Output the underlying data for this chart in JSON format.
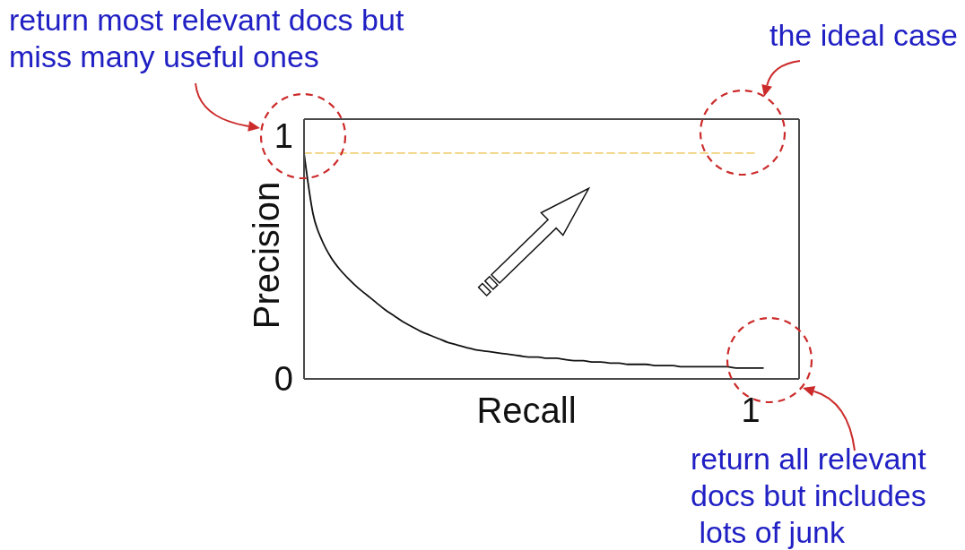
{
  "chart_data": {
    "type": "line",
    "xlabel": "Recall",
    "ylabel": "Precision",
    "categories": [
      null,
      null,
      null,
      null,
      null,
      null,
      null,
      null,
      null,
      null,
      null,
      null,
      null,
      null,
      null,
      null,
      null,
      null,
      null,
      null,
      null,
      null,
      null,
      null,
      null,
      null,
      null,
      null,
      null,
      null,
      null,
      null,
      null,
      null,
      null,
      null,
      null,
      null,
      null,
      null,
      null,
      null,
      null,
      null,
      null,
      null,
      null,
      null,
      null,
      null,
      null,
      null,
      null,
      null,
      null,
      null
    ],
    "ylim": [
      0,
      1.07
    ],
    "yticks": [
      0,
      1
    ],
    "series": [
      {
        "color": "#111111",
        "values": [
          0.93,
          0.68,
          0.57,
          0.5,
          0.45,
          0.41,
          0.375,
          0.345,
          0.315,
          0.285,
          0.26,
          0.235,
          0.215,
          0.195,
          0.18,
          0.165,
          0.15,
          0.14,
          0.13,
          0.12,
          0.115,
          0.11,
          0.105,
          0.1,
          0.095,
          0.09,
          0.09,
          0.085,
          0.085,
          0.08,
          0.075,
          0.075,
          0.07,
          0.07,
          0.065,
          0.065,
          0.06,
          0.06,
          0.06,
          0.055,
          0.055,
          0.055,
          0.05,
          0.05,
          0.05,
          0.05,
          0.05,
          0.05,
          0.045,
          0.045,
          0.045,
          0.045,
          null,
          null,
          null,
          null
        ]
      },
      {
        "color": "#f0d27a",
        "line_style": "dashed",
        "values": [
          0.93,
          0.93,
          0.93,
          0.93,
          0.93,
          0.93,
          0.93,
          0.93,
          0.93,
          0.93,
          0.93,
          0.93,
          0.93,
          0.93,
          0.93,
          0.93,
          0.93,
          0.93,
          0.93,
          0.93,
          0.93,
          0.93,
          0.93,
          0.93,
          0.93,
          0.93,
          0.93,
          0.93,
          0.93,
          0.93,
          0.93,
          0.93,
          0.93,
          0.93,
          0.93,
          0.93,
          0.93,
          0.93,
          0.93,
          0.93,
          0.93,
          0.93,
          0.93,
          0.93,
          0.93,
          0.93,
          0.93,
          0.93,
          0.93,
          0.93,
          0.93,
          null,
          null,
          null,
          null,
          null
        ]
      }
    ],
    "annotations": [
      "return most relevant docs but\nmiss many useful ones",
      "the ideal case",
      "return all relevant\ndocs but includes\n lots of junk",
      "1"
    ]
  }
}
